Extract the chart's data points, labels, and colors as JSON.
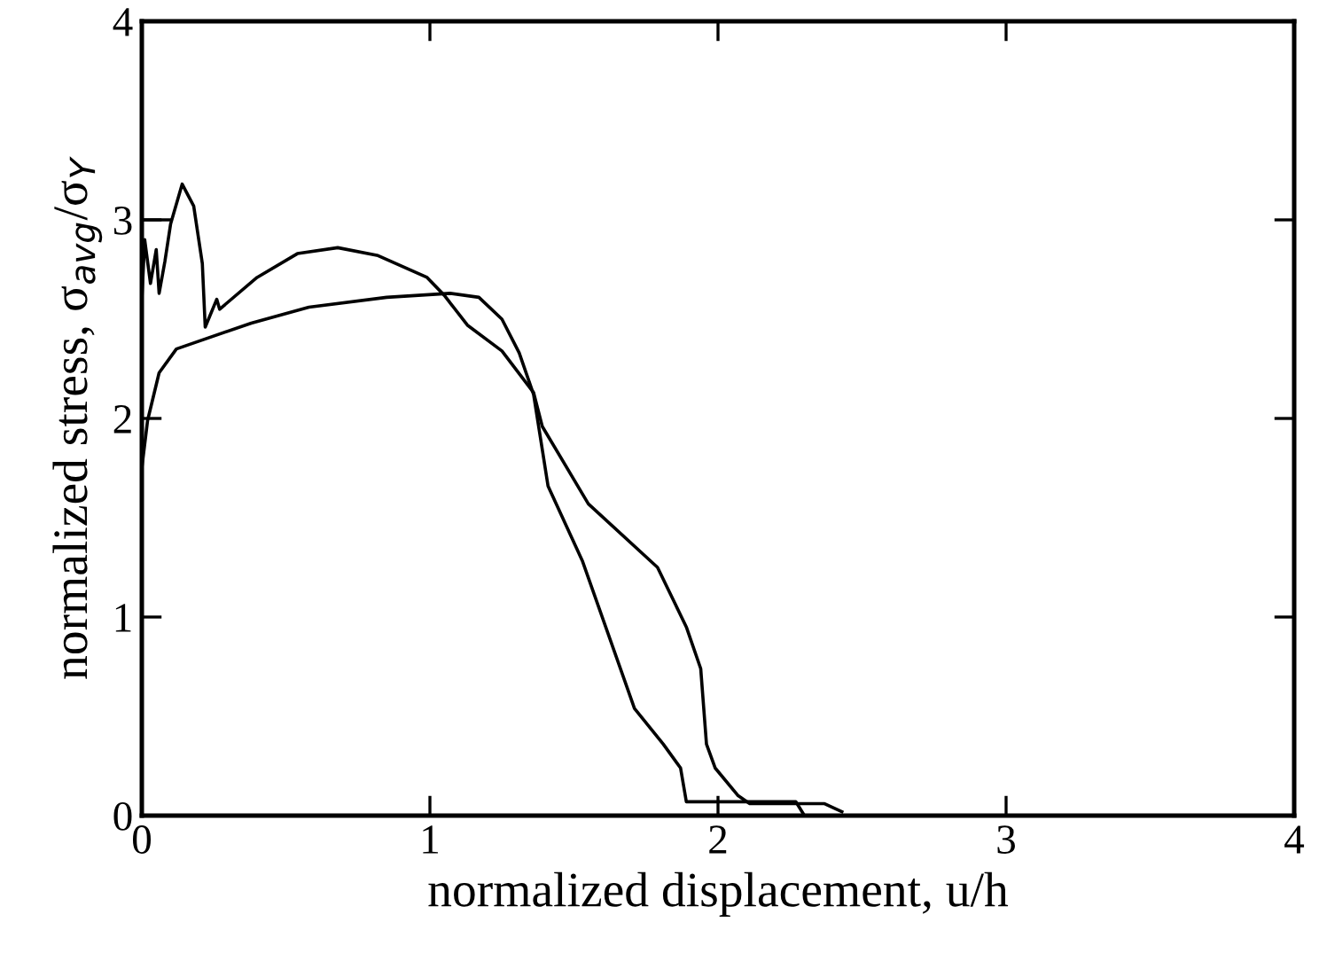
{
  "chart_data": {
    "type": "line",
    "xlabel": "normalized displacement, u/h",
    "ylabel": "normalized stress, σ$_{avg}$/σ$_{Y}$",
    "xlim": [
      0,
      4
    ],
    "ylim": [
      0,
      4
    ],
    "xticks": [
      0,
      1,
      2,
      3,
      4
    ],
    "yticks": [
      0,
      1,
      2,
      3,
      4
    ],
    "grid": false,
    "marker": "none",
    "line_style": "solid",
    "series": [
      {
        "color": "#000000",
        "x": [
          0,
          0.01,
          0.03,
          0.05,
          0.06,
          0.08,
          0.1,
          0.14,
          0.18,
          0.21,
          0.22,
          0.26,
          0.27,
          0.4,
          0.54,
          0.68,
          0.82,
          0.99,
          1.05,
          1.13,
          1.25,
          1.36,
          1.39,
          1.55,
          1.79,
          1.85,
          1.89,
          1.94,
          1.96,
          1.99,
          2.07,
          2.11,
          2.37,
          2.43
        ],
        "values": [
          2.6,
          2.9,
          2.68,
          2.85,
          2.63,
          2.79,
          2.98,
          3.18,
          3.07,
          2.78,
          2.46,
          2.6,
          2.55,
          2.71,
          2.83,
          2.86,
          2.82,
          2.71,
          2.62,
          2.47,
          2.34,
          2.13,
          1.96,
          1.57,
          1.25,
          1.07,
          0.95,
          0.74,
          0.36,
          0.24,
          0.1,
          0.06,
          0.06,
          0.02
        ]
      },
      {
        "color": "#000000",
        "x": [
          0,
          0.1
        ],
        "values": [
          3.0,
          3.0
        ]
      },
      {
        "color": "#000000",
        "x": [
          0,
          0.02,
          0.06,
          0.12,
          0.38,
          0.58,
          0.85,
          1.07,
          1.17,
          1.25,
          1.31,
          1.36,
          1.41,
          1.53,
          1.71,
          1.81,
          1.87,
          1.89,
          2.27,
          2.3
        ],
        "values": [
          1.75,
          1.99,
          2.23,
          2.35,
          2.48,
          2.56,
          2.61,
          2.63,
          2.61,
          2.5,
          2.33,
          2.12,
          1.66,
          1.28,
          0.54,
          0.36,
          0.24,
          0.07,
          0.07,
          0.0
        ]
      }
    ]
  }
}
